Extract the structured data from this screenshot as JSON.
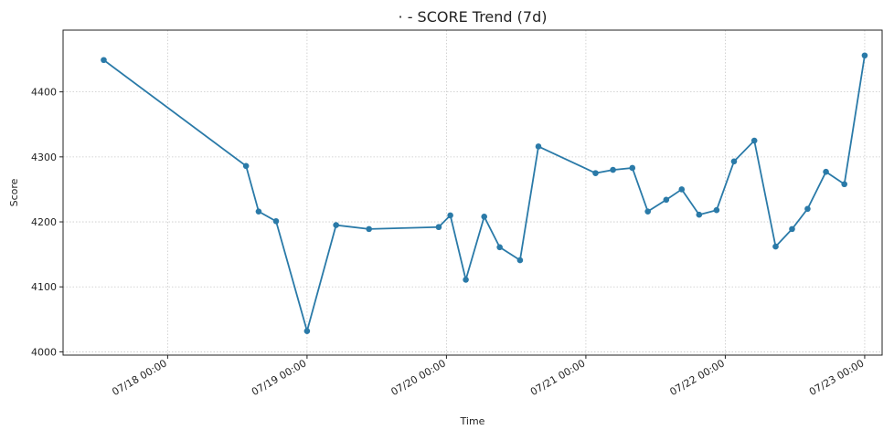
{
  "chart_data": {
    "type": "line",
    "title": "· - SCORE Trend (7d)",
    "xlabel": "Time",
    "ylabel": "Score",
    "x_axis_type": "datetime",
    "xlim": [
      "2024-07-17T06:00",
      "2024-07-23T03:00"
    ],
    "ylim": [
      3995,
      4495
    ],
    "x_ticks": [
      {
        "value": "2024-07-18T00:00",
        "label": "07/18 00:00"
      },
      {
        "value": "2024-07-19T00:00",
        "label": "07/19 00:00"
      },
      {
        "value": "2024-07-20T00:00",
        "label": "07/20 00:00"
      },
      {
        "value": "2024-07-21T00:00",
        "label": "07/21 00:00"
      },
      {
        "value": "2024-07-22T00:00",
        "label": "07/22 00:00"
      },
      {
        "value": "2024-07-23T00:00",
        "label": "07/23 00:00"
      }
    ],
    "y_ticks": [
      4000,
      4100,
      4200,
      4300,
      4400
    ],
    "grid": true,
    "color": "#2a7aa8",
    "series": [
      {
        "x": [
          "2024-07-17T13:00",
          "2024-07-18T13:30",
          "2024-07-18T15:40",
          "2024-07-18T18:40",
          "2024-07-19T00:00",
          "2024-07-19T05:00",
          "2024-07-19T10:40",
          "2024-07-19T22:40",
          "2024-07-20T00:40",
          "2024-07-20T03:20",
          "2024-07-20T06:30",
          "2024-07-20T09:10",
          "2024-07-20T12:40",
          "2024-07-20T15:50",
          "2024-07-21T01:40",
          "2024-07-21T04:40",
          "2024-07-21T08:00",
          "2024-07-21T10:40",
          "2024-07-21T13:50",
          "2024-07-21T16:30",
          "2024-07-21T19:30",
          "2024-07-21T22:30",
          "2024-07-22T01:30",
          "2024-07-22T05:00",
          "2024-07-22T08:40",
          "2024-07-22T11:30",
          "2024-07-22T14:10",
          "2024-07-22T17:20",
          "2024-07-22T20:30",
          "2024-07-23T00:00"
        ],
        "y": [
          4449,
          4286,
          4216,
          4201,
          4032,
          4195,
          4189,
          4192,
          4210,
          4111,
          4208,
          4161,
          4141,
          4316,
          4275,
          4280,
          4283,
          4216,
          4234,
          4250,
          4211,
          4218,
          4293,
          4325,
          4162,
          4189,
          4220,
          4277,
          4258,
          4456
        ]
      }
    ]
  }
}
